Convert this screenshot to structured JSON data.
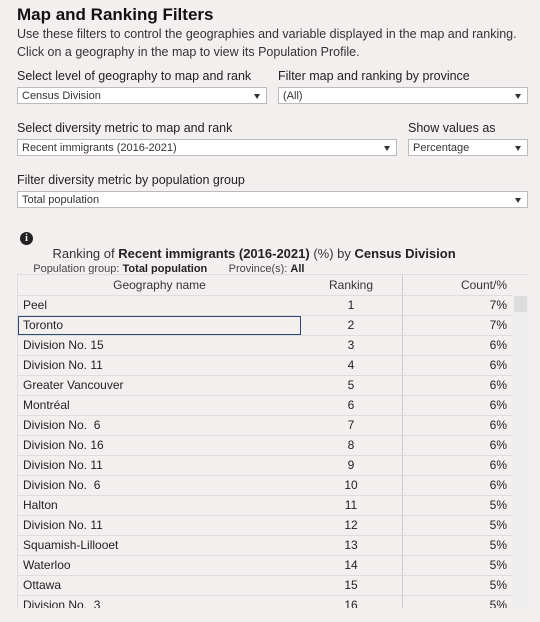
{
  "header": {
    "title": "Map and Ranking Filters",
    "description": [
      "Use these filters to control the geographies and variable displayed in the map and ranking.",
      "Click on a geography in the map to view its Population Profile."
    ]
  },
  "filters": [
    {
      "label": "Select level of geography to map and rank",
      "value": "Census Division"
    },
    {
      "label": "Filter map and ranking by province",
      "value": "(All)"
    },
    {
      "label": "Select diversity metric to map and rank",
      "value": "Recent immigrants (2016-2021)"
    },
    {
      "label": "Show values as",
      "value": "Percentage"
    },
    {
      "label": "Filter diversity metric by population group",
      "value": "Total population"
    }
  ],
  "ranking": {
    "prefix": "Ranking of",
    "metric": "Recent immigrants (2016-2021)",
    "unit": "(%) by",
    "geography": "Census Division",
    "population_group_label": "Population group:",
    "population_group": "Total population",
    "province_label": "Province(s):",
    "province": "All"
  },
  "table": {
    "columns": [
      "Geography name",
      "Ranking",
      "Count/%"
    ],
    "rows": [
      [
        "Peel",
        "1",
        "7%"
      ],
      [
        "Toronto",
        "2",
        "7%"
      ],
      [
        "Division No. 15",
        "3",
        "6%"
      ],
      [
        "Division No. 11",
        "4",
        "6%"
      ],
      [
        "Greater Vancouver",
        "5",
        "6%"
      ],
      [
        "Montréal",
        "6",
        "6%"
      ],
      [
        "Division No.  6",
        "7",
        "6%"
      ],
      [
        "Division No. 16",
        "8",
        "6%"
      ],
      [
        "Division No. 11",
        "9",
        "6%"
      ],
      [
        "Division No.  6",
        "10",
        "6%"
      ],
      [
        "Halton",
        "11",
        "5%"
      ],
      [
        "Division No. 11",
        "12",
        "5%"
      ],
      [
        "Squamish-Lillooet",
        "13",
        "5%"
      ],
      [
        "Waterloo",
        "14",
        "5%"
      ],
      [
        "Ottawa",
        "15",
        "5%"
      ],
      [
        "Division No.  3",
        "16",
        "5%"
      ]
    ]
  }
}
